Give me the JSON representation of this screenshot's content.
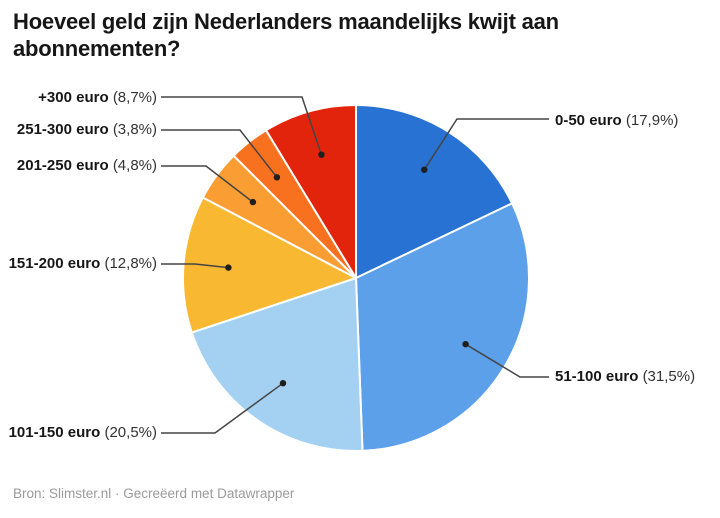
{
  "chart_data": {
    "type": "pie",
    "title": "Hoeveel geld zijn Nederlanders maandelijks kwijt aan\nabonnementen?",
    "source_note": "Bron: Slimster.nl · Gecreëerd met Datawrapper",
    "direction": "clockwise",
    "start_angle_deg": 0,
    "legend_position": "callout-labels",
    "connector_color": "#454545",
    "dot_color": "#1f1f1f",
    "slice_border_color": "#ffffff",
    "slices": [
      {
        "label": "0-50 euro",
        "value": 17.9,
        "pct_text": "(17,9%)",
        "color": "#2772D2",
        "label_side": "right"
      },
      {
        "label": "51-100 euro",
        "value": 31.5,
        "pct_text": "(31,5%)",
        "color": "#5BA0E9",
        "label_side": "right"
      },
      {
        "label": "101-150 euro",
        "value": 20.5,
        "pct_text": "(20,5%)",
        "color": "#A4D1F1",
        "label_side": "left"
      },
      {
        "label": "151-200 euro",
        "value": 12.8,
        "pct_text": "(12,8%)",
        "color": "#F8B832",
        "label_side": "left"
      },
      {
        "label": "201-250 euro",
        "value": 4.8,
        "pct_text": "(4,8%)",
        "color": "#FA9D33",
        "label_side": "left"
      },
      {
        "label": "251-300 euro",
        "value": 3.8,
        "pct_text": "(3,8%)",
        "color": "#F7711F",
        "label_side": "left"
      },
      {
        "label": "+300 euro",
        "value": 8.7,
        "pct_text": "(8,7%)",
        "color": "#E2240C",
        "label_side": "left"
      }
    ]
  }
}
